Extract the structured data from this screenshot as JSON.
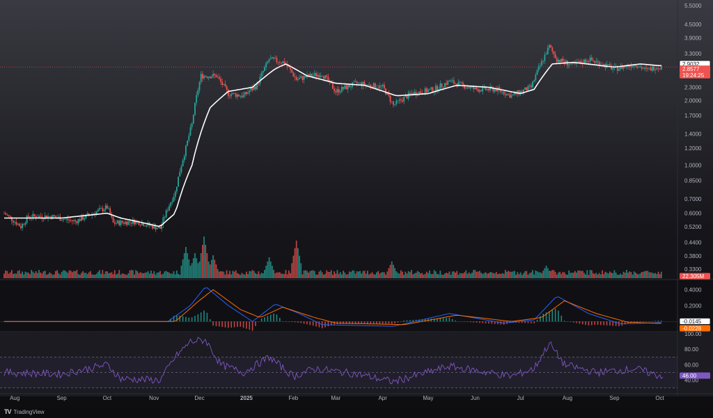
{
  "app": {
    "brand": "TradingView",
    "logo_glyph": "TV"
  },
  "colors": {
    "background": "#131722",
    "up": "#26a69a",
    "down": "#ef5350",
    "ma": "#ffffff",
    "macd_line": "#2962ff",
    "signal_line": "#ff6d00",
    "rsi_line": "#7e57c2",
    "price_line": "#ef5350"
  },
  "chart_data": [
    {
      "type": "candlestick",
      "panel": "price",
      "y_scale": "log",
      "ylim": [
        0.3,
        5.5
      ],
      "y_ticks": [
        "5.5000",
        "4.5000",
        "3.9000",
        "3.3000",
        "2.3000",
        "2.0000",
        "1.7000",
        "1.4000",
        "1.2000",
        "1.0000",
        "0.8500",
        "0.7000",
        "0.6000",
        "0.5200",
        "0.4400",
        "0.3800",
        "0.3300"
      ],
      "x_ticks": [
        "Aug",
        "Sep",
        "Oct",
        "Nov",
        "Dec",
        "2025",
        "Feb",
        "Mar",
        "Apr",
        "May",
        "Jun",
        "Jul",
        "Aug",
        "Sep",
        "Oct"
      ],
      "close_anchors": [
        {
          "x": "2024-07-25",
          "y": 0.6
        },
        {
          "x": "2024-08-05",
          "y": 0.52
        },
        {
          "x": "2024-08-10",
          "y": 0.58
        },
        {
          "x": "2024-08-25",
          "y": 0.58
        },
        {
          "x": "2024-09-10",
          "y": 0.55
        },
        {
          "x": "2024-10-01",
          "y": 0.64
        },
        {
          "x": "2024-10-05",
          "y": 0.54
        },
        {
          "x": "2024-10-20",
          "y": 0.55
        },
        {
          "x": "2024-11-05",
          "y": 0.51
        },
        {
          "x": "2024-11-15",
          "y": 0.75
        },
        {
          "x": "2024-11-22",
          "y": 1.2
        },
        {
          "x": "2024-11-26",
          "y": 1.55
        },
        {
          "x": "2024-12-02",
          "y": 2.6
        },
        {
          "x": "2024-12-12",
          "y": 2.6
        },
        {
          "x": "2024-12-20",
          "y": 2.15
        },
        {
          "x": "2024-12-30",
          "y": 2.1
        },
        {
          "x": "2025-01-08",
          "y": 2.35
        },
        {
          "x": "2025-01-16",
          "y": 3.1
        },
        {
          "x": "2025-01-26",
          "y": 3.0
        },
        {
          "x": "2025-02-03",
          "y": 2.5
        },
        {
          "x": "2025-02-12",
          "y": 2.6
        },
        {
          "x": "2025-02-20",
          "y": 2.65
        },
        {
          "x": "2025-03-01",
          "y": 2.2
        },
        {
          "x": "2025-03-15",
          "y": 2.4
        },
        {
          "x": "2025-04-01",
          "y": 2.3
        },
        {
          "x": "2025-04-08",
          "y": 1.9
        },
        {
          "x": "2025-04-20",
          "y": 2.15
        },
        {
          "x": "2025-05-05",
          "y": 2.25
        },
        {
          "x": "2025-05-15",
          "y": 2.45
        },
        {
          "x": "2025-06-01",
          "y": 2.25
        },
        {
          "x": "2025-06-15",
          "y": 2.25
        },
        {
          "x": "2025-06-25",
          "y": 2.1
        },
        {
          "x": "2025-07-08",
          "y": 2.3
        },
        {
          "x": "2025-07-15",
          "y": 3.0
        },
        {
          "x": "2025-07-20",
          "y": 3.55
        },
        {
          "x": "2025-07-25",
          "y": 3.1
        },
        {
          "x": "2025-08-05",
          "y": 2.9
        },
        {
          "x": "2025-08-15",
          "y": 3.1
        },
        {
          "x": "2025-09-01",
          "y": 2.8
        },
        {
          "x": "2025-09-15",
          "y": 2.95
        },
        {
          "x": "2025-09-22",
          "y": 2.75
        },
        {
          "x": "2025-09-28",
          "y": 2.86
        }
      ],
      "moving_average_anchors": [
        {
          "x": "2024-07-25",
          "y": 0.57
        },
        {
          "x": "2024-09-01",
          "y": 0.57
        },
        {
          "x": "2024-10-01",
          "y": 0.6
        },
        {
          "x": "2024-10-10",
          "y": 0.57
        },
        {
          "x": "2024-11-05",
          "y": 0.52
        },
        {
          "x": "2024-11-15",
          "y": 0.6
        },
        {
          "x": "2024-11-26",
          "y": 1.0
        },
        {
          "x": "2024-12-08",
          "y": 1.85
        },
        {
          "x": "2024-12-20",
          "y": 2.2
        },
        {
          "x": "2025-01-05",
          "y": 2.3
        },
        {
          "x": "2025-01-20",
          "y": 2.8
        },
        {
          "x": "2025-01-27",
          "y": 2.95
        },
        {
          "x": "2025-02-10",
          "y": 2.6
        },
        {
          "x": "2025-03-01",
          "y": 2.4
        },
        {
          "x": "2025-03-20",
          "y": 2.35
        },
        {
          "x": "2025-04-10",
          "y": 2.1
        },
        {
          "x": "2025-05-01",
          "y": 2.15
        },
        {
          "x": "2025-05-20",
          "y": 2.35
        },
        {
          "x": "2025-06-10",
          "y": 2.3
        },
        {
          "x": "2025-07-01",
          "y": 2.15
        },
        {
          "x": "2025-07-10",
          "y": 2.25
        },
        {
          "x": "2025-07-22",
          "y": 2.95
        },
        {
          "x": "2025-08-05",
          "y": 3.0
        },
        {
          "x": "2025-09-01",
          "y": 2.85
        },
        {
          "x": "2025-09-18",
          "y": 2.95
        },
        {
          "x": "2025-09-30",
          "y": 2.9
        }
      ],
      "last_price_labels": {
        "ma": "2.9032",
        "price": "2.8577",
        "countdown": "19:24:25"
      }
    },
    {
      "type": "bar",
      "panel": "volume",
      "last_value_label": "22.305M",
      "spikes": [
        {
          "x": "2024-11-22",
          "rel": 0.75
        },
        {
          "x": "2024-11-28",
          "rel": 0.6
        },
        {
          "x": "2024-12-04",
          "rel": 1.0
        },
        {
          "x": "2024-12-10",
          "rel": 0.55
        },
        {
          "x": "2025-01-16",
          "rel": 0.5
        },
        {
          "x": "2025-02-03",
          "rel": 0.9
        },
        {
          "x": "2025-04-07",
          "rel": 0.4
        },
        {
          "x": "2025-07-18",
          "rel": 0.3
        }
      ]
    },
    {
      "type": "line",
      "panel": "macd",
      "y_ticks": [
        "0.4000",
        "0.2000"
      ],
      "ylim": [
        -0.12,
        0.5
      ],
      "series": [
        {
          "name": "",
          "color": "#2962ff",
          "anchors": [
            {
              "x": "2024-07-25",
              "y": 0.0
            },
            {
              "x": "2024-11-10",
              "y": 0.0
            },
            {
              "x": "2024-11-25",
              "y": 0.2
            },
            {
              "x": "2024-12-05",
              "y": 0.44
            },
            {
              "x": "2024-12-20",
              "y": 0.2
            },
            {
              "x": "2025-01-05",
              "y": 0.0
            },
            {
              "x": "2025-01-20",
              "y": 0.22
            },
            {
              "x": "2025-02-05",
              "y": 0.1
            },
            {
              "x": "2025-02-20",
              "y": -0.04
            },
            {
              "x": "2025-04-08",
              "y": -0.06
            },
            {
              "x": "2025-05-15",
              "y": 0.1
            },
            {
              "x": "2025-06-20",
              "y": -0.02
            },
            {
              "x": "2025-07-10",
              "y": 0.02
            },
            {
              "x": "2025-07-25",
              "y": 0.32
            },
            {
              "x": "2025-08-15",
              "y": 0.1
            },
            {
              "x": "2025-09-05",
              "y": -0.03
            },
            {
              "x": "2025-09-30",
              "y": -0.0145
            }
          ]
        },
        {
          "name": "",
          "color": "#ff6d00",
          "anchors": [
            {
              "x": "2024-07-25",
              "y": 0.0
            },
            {
              "x": "2024-11-15",
              "y": 0.0
            },
            {
              "x": "2024-11-30",
              "y": 0.25
            },
            {
              "x": "2024-12-10",
              "y": 0.4
            },
            {
              "x": "2024-12-28",
              "y": 0.15
            },
            {
              "x": "2025-01-10",
              "y": 0.05
            },
            {
              "x": "2025-01-25",
              "y": 0.18
            },
            {
              "x": "2025-02-15",
              "y": 0.05
            },
            {
              "x": "2025-03-01",
              "y": -0.02
            },
            {
              "x": "2025-04-15",
              "y": -0.04
            },
            {
              "x": "2025-05-20",
              "y": 0.08
            },
            {
              "x": "2025-06-25",
              "y": 0.0
            },
            {
              "x": "2025-07-15",
              "y": 0.05
            },
            {
              "x": "2025-07-30",
              "y": 0.26
            },
            {
              "x": "2025-08-20",
              "y": 0.1
            },
            {
              "x": "2025-09-10",
              "y": -0.01
            },
            {
              "x": "2025-09-30",
              "y": -0.0228
            }
          ]
        }
      ],
      "last_value_labels": [
        "-0.0145",
        "-0.0228"
      ]
    },
    {
      "type": "line",
      "panel": "rsi",
      "y_ticks": [
        "100.00",
        "80.00",
        "60.00",
        "40.00"
      ],
      "ylim": [
        28,
        100
      ],
      "bands": [
        70,
        50,
        30
      ],
      "series": [
        {
          "name": "",
          "color": "#7e57c2",
          "anchors": [
            {
              "x": "2024-07-25",
              "y": 50
            },
            {
              "x": "2024-09-01",
              "y": 48
            },
            {
              "x": "2024-10-01",
              "y": 60
            },
            {
              "x": "2024-10-10",
              "y": 42
            },
            {
              "x": "2024-11-05",
              "y": 40
            },
            {
              "x": "2024-11-15",
              "y": 70
            },
            {
              "x": "2024-11-25",
              "y": 90
            },
            {
              "x": "2024-12-05",
              "y": 92
            },
            {
              "x": "2024-12-15",
              "y": 60
            },
            {
              "x": "2024-12-30",
              "y": 50
            },
            {
              "x": "2025-01-16",
              "y": 70
            },
            {
              "x": "2025-02-01",
              "y": 45
            },
            {
              "x": "2025-02-15",
              "y": 55
            },
            {
              "x": "2025-03-15",
              "y": 48
            },
            {
              "x": "2025-04-08",
              "y": 38
            },
            {
              "x": "2025-05-15",
              "y": 58
            },
            {
              "x": "2025-06-25",
              "y": 45
            },
            {
              "x": "2025-07-10",
              "y": 55
            },
            {
              "x": "2025-07-20",
              "y": 88
            },
            {
              "x": "2025-07-30",
              "y": 60
            },
            {
              "x": "2025-08-20",
              "y": 50
            },
            {
              "x": "2025-09-15",
              "y": 55
            },
            {
              "x": "2025-09-30",
              "y": 46
            }
          ]
        }
      ],
      "last_value_label": "46.00"
    }
  ]
}
